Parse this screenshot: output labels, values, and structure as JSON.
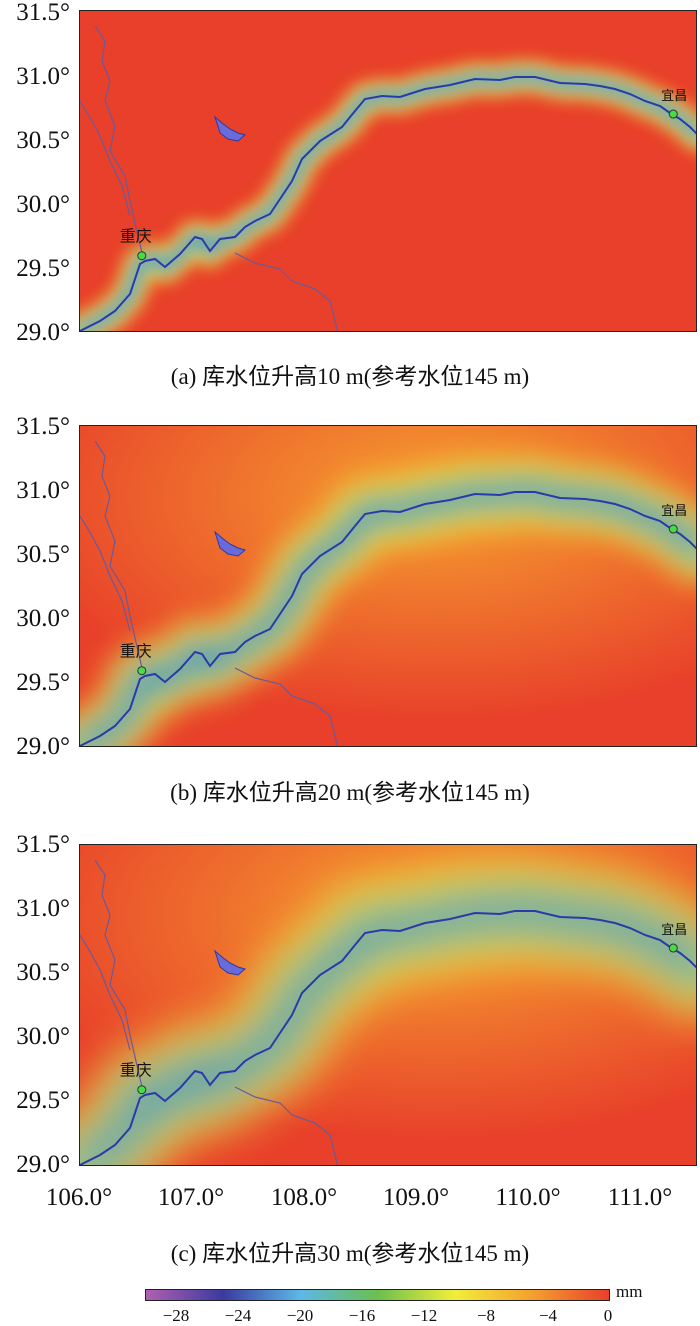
{
  "chart_data": [
    {
      "type": "heatmap",
      "caption": "(a) 库水位升高10 m(参考水位145 m)",
      "xlim": [
        106.0,
        111.5
      ],
      "ylim": [
        29.0,
        31.5
      ],
      "yticks": [
        "29.0°",
        "29.5°",
        "30.0°",
        "30.5°",
        "31.0°",
        "31.5°"
      ],
      "cities": [
        {
          "name": "重庆",
          "lon": 106.55,
          "lat": 29.6
        },
        {
          "name": "宜昌",
          "lon": 111.28,
          "lat": 30.7
        }
      ],
      "max_abs_value": 10
    },
    {
      "type": "heatmap",
      "caption": "(b) 库水位升高20 m(参考水位145 m)",
      "xlim": [
        106.0,
        111.5
      ],
      "ylim": [
        29.0,
        31.5
      ],
      "yticks": [
        "29.0°",
        "29.5°",
        "30.0°",
        "30.5°",
        "31.0°",
        "31.5°"
      ],
      "cities": [
        {
          "name": "重庆",
          "lon": 106.55,
          "lat": 29.6
        },
        {
          "name": "宜昌",
          "lon": 111.28,
          "lat": 30.7
        }
      ],
      "max_abs_value": 20
    },
    {
      "type": "heatmap",
      "caption": "(c) 库水位升高30 m(参考水位145 m)",
      "xlim": [
        106.0,
        111.5
      ],
      "ylim": [
        29.0,
        31.5
      ],
      "yticks": [
        "29.0°",
        "29.5°",
        "30.0°",
        "30.5°",
        "31.0°",
        "31.5°"
      ],
      "xticks": [
        "106.0°",
        "107.0°",
        "108.0°",
        "109.0°",
        "110.0°",
        "111.0°"
      ],
      "cities": [
        {
          "name": "重庆",
          "lon": 106.55,
          "lat": 29.6
        },
        {
          "name": "宜昌",
          "lon": 111.28,
          "lat": 30.7
        }
      ],
      "max_abs_value": 30
    }
  ],
  "colorbar": {
    "unit": "mm",
    "range": [
      -30,
      0
    ],
    "ticks": [
      "−28",
      "−24",
      "−20",
      "−16",
      "−12",
      "−8",
      "−4",
      "0"
    ],
    "colors": [
      "#b05fb0",
      "#3a3aa0",
      "#5cb8e8",
      "#6bbf4e",
      "#f2ee3a",
      "#f5a030",
      "#e8402a"
    ]
  }
}
